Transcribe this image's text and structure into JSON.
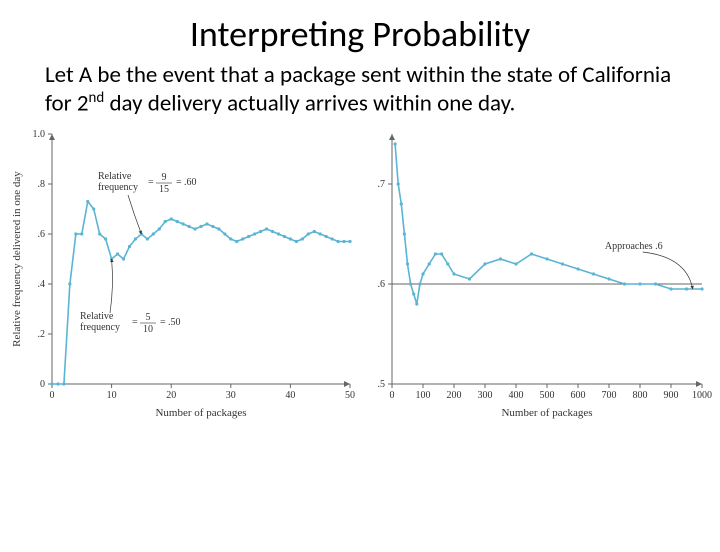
{
  "title": "Interpreting Probability",
  "body": {
    "pre": "Let A be the event that a package sent within the state of California for 2",
    "sup": "nd",
    "post": " day delivery actually arrives within one day."
  },
  "left_chart": {
    "type": "line",
    "x_label": "Number of packages",
    "y_label": "Relative frequency delivered in one day",
    "xlim": [
      0,
      50
    ],
    "x_ticks": [
      0,
      10,
      20,
      30,
      40,
      50
    ],
    "ylim": [
      0,
      1.0
    ],
    "y_ticks": [
      0,
      0.2,
      0.4,
      0.6,
      0.8,
      1.0
    ],
    "y_tick_labels": [
      "0",
      ".2",
      ".4",
      ".6",
      ".8",
      "1.0"
    ],
    "line_color": "#5ab4d4",
    "axis_color": "#666666",
    "text_color": "#333333",
    "series": {
      "x": [
        0,
        1,
        2,
        3,
        4,
        5,
        6,
        7,
        8,
        9,
        10,
        11,
        12,
        13,
        14,
        15,
        16,
        17,
        18,
        19,
        20,
        21,
        22,
        23,
        24,
        25,
        26,
        27,
        28,
        29,
        30,
        31,
        32,
        33,
        34,
        35,
        36,
        37,
        38,
        39,
        40,
        41,
        42,
        43,
        44,
        45,
        46,
        47,
        48,
        49,
        50
      ],
      "y": [
        0.0,
        0.0,
        0.0,
        0.4,
        0.6,
        0.6,
        0.73,
        0.7,
        0.6,
        0.58,
        0.5,
        0.52,
        0.5,
        0.55,
        0.58,
        0.6,
        0.58,
        0.6,
        0.62,
        0.65,
        0.66,
        0.65,
        0.64,
        0.63,
        0.62,
        0.63,
        0.64,
        0.63,
        0.62,
        0.6,
        0.58,
        0.57,
        0.58,
        0.59,
        0.6,
        0.61,
        0.62,
        0.61,
        0.6,
        0.59,
        0.58,
        0.57,
        0.58,
        0.6,
        0.61,
        0.6,
        0.59,
        0.58,
        0.57,
        0.57,
        0.57
      ]
    },
    "annot1": {
      "label": "Relative",
      "label2": "frequency",
      "eq": "=",
      "num": "9",
      "den": "15",
      "val": ".60",
      "target_x": 15,
      "target_y": 0.6
    },
    "annot2": {
      "label": "Relative",
      "label2": "frequency",
      "eq": "=",
      "num": "5",
      "den": "10",
      "val": ".50",
      "target_x": 10,
      "target_y": 0.5
    }
  },
  "right_chart": {
    "type": "line",
    "x_label": "Number of packages",
    "xlim": [
      0,
      1000
    ],
    "x_ticks": [
      0,
      100,
      200,
      300,
      400,
      500,
      600,
      700,
      800,
      900,
      1000
    ],
    "ylim": [
      0.5,
      0.75
    ],
    "y_ticks": [
      0.5,
      0.6,
      0.7
    ],
    "y_tick_labels": [
      ".5",
      ".6",
      ".7"
    ],
    "ref_y": 0.6,
    "line_color": "#5ab4d4",
    "axis_color": "#666666",
    "text_color": "#333333",
    "series": {
      "x": [
        10,
        20,
        30,
        40,
        50,
        60,
        70,
        80,
        90,
        100,
        120,
        140,
        160,
        180,
        200,
        250,
        300,
        350,
        400,
        450,
        500,
        550,
        600,
        650,
        700,
        750,
        800,
        850,
        900,
        950,
        1000
      ],
      "y": [
        0.74,
        0.7,
        0.68,
        0.65,
        0.62,
        0.6,
        0.59,
        0.58,
        0.6,
        0.61,
        0.62,
        0.63,
        0.63,
        0.62,
        0.61,
        0.605,
        0.62,
        0.625,
        0.62,
        0.63,
        0.625,
        0.62,
        0.615,
        0.61,
        0.605,
        0.6,
        0.6,
        0.6,
        0.595,
        0.595,
        0.595
      ]
    },
    "annot": {
      "label": "Approaches .6",
      "target_x": 970,
      "target_y": 0.595
    }
  }
}
